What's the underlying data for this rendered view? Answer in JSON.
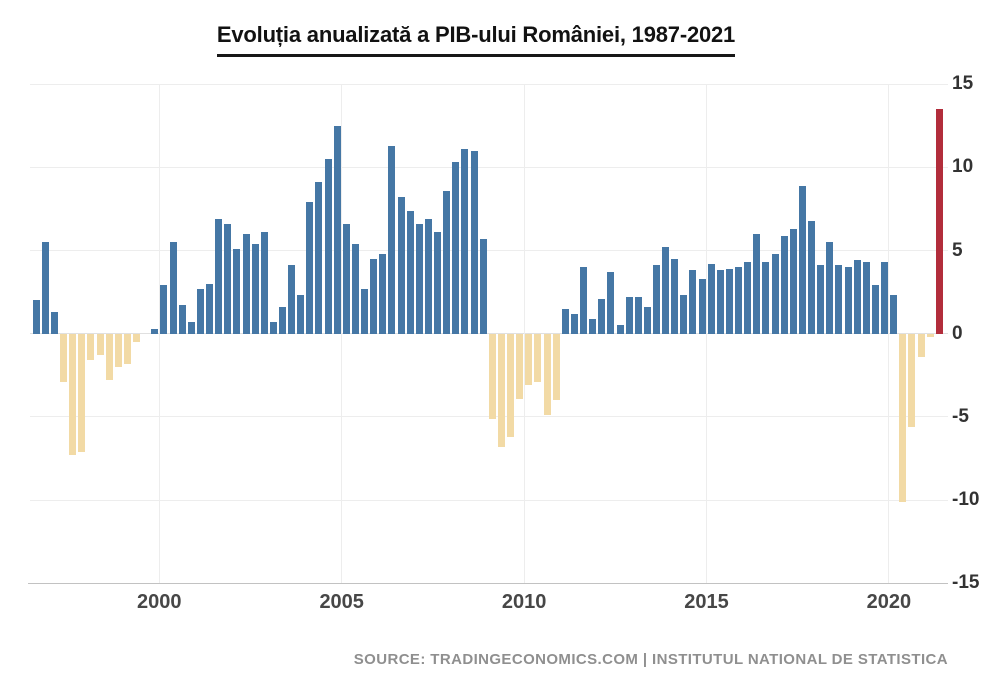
{
  "header": {
    "title": "Evoluția anualizată a PIB-ului României, 1987-2021"
  },
  "footer": {
    "source": "SOURCE: TRADINGECONOMICS.COM | INSTITUTUL NATIONAL DE STATISTICA"
  },
  "chart_data": {
    "type": "bar",
    "title": "Evoluția anualizată a PIB-ului României, 1987-2021",
    "source": "SOURCE: TRADINGECONOMICS.COM | INSTITUTUL NATIONAL DE STATISTICA",
    "frequency": "quarterly",
    "unit": "percent",
    "ylabel": "",
    "xlabel": "",
    "ylim": [
      -15,
      15
    ],
    "y_axis": {
      "side": "right",
      "ticks": [
        15,
        10,
        5,
        0,
        -5,
        -10,
        -15
      ]
    },
    "x_axis": {
      "ticks": [
        "2000",
        "2005",
        "2010",
        "2015",
        "2020"
      ]
    },
    "legend": "none",
    "grid": "on",
    "colors": {
      "positive": "#4577a5",
      "negative": "#f2daa5",
      "highlight": "#b22d3b",
      "gridline": "#ededed",
      "axis_line": "#c2c2c2"
    },
    "bars": [
      {
        "q": "1996-Q3",
        "v": 2.0
      },
      {
        "q": "1996-Q4",
        "v": 5.5
      },
      {
        "q": "1997-Q1",
        "v": 1.3
      },
      {
        "q": "1997-Q2",
        "v": -2.9
      },
      {
        "q": "1997-Q3",
        "v": -7.3
      },
      {
        "q": "1997-Q4",
        "v": -7.1
      },
      {
        "q": "1998-Q1",
        "v": -1.6
      },
      {
        "q": "1998-Q2",
        "v": -1.3
      },
      {
        "q": "1998-Q3",
        "v": -2.8
      },
      {
        "q": "1998-Q4",
        "v": -2.0
      },
      {
        "q": "1999-Q1",
        "v": -1.8
      },
      {
        "q": "1999-Q2",
        "v": -0.5
      },
      {
        "q": "1999-Q3",
        "v": 0.0
      },
      {
        "q": "1999-Q4",
        "v": 0.3
      },
      {
        "q": "2000-Q1",
        "v": 2.9
      },
      {
        "q": "2000-Q2",
        "v": 5.5
      },
      {
        "q": "2000-Q3",
        "v": 1.7
      },
      {
        "q": "2000-Q4",
        "v": 0.7
      },
      {
        "q": "2001-Q1",
        "v": 2.7
      },
      {
        "q": "2001-Q2",
        "v": 3.0
      },
      {
        "q": "2001-Q3",
        "v": 6.9
      },
      {
        "q": "2001-Q4",
        "v": 6.6
      },
      {
        "q": "2002-Q1",
        "v": 5.1
      },
      {
        "q": "2002-Q2",
        "v": 6.0
      },
      {
        "q": "2002-Q3",
        "v": 5.4
      },
      {
        "q": "2002-Q4",
        "v": 6.1
      },
      {
        "q": "2003-Q1",
        "v": 0.7
      },
      {
        "q": "2003-Q2",
        "v": 1.6
      },
      {
        "q": "2003-Q3",
        "v": 4.1
      },
      {
        "q": "2003-Q4",
        "v": 2.3
      },
      {
        "q": "2004-Q1",
        "v": 7.9
      },
      {
        "q": "2004-Q2",
        "v": 9.1
      },
      {
        "q": "2004-Q3",
        "v": 10.5
      },
      {
        "q": "2004-Q4",
        "v": 12.5
      },
      {
        "q": "2005-Q1",
        "v": 6.6
      },
      {
        "q": "2005-Q2",
        "v": 5.4
      },
      {
        "q": "2005-Q3",
        "v": 2.7
      },
      {
        "q": "2005-Q4",
        "v": 4.5
      },
      {
        "q": "2006-Q1",
        "v": 4.8
      },
      {
        "q": "2006-Q2",
        "v": 11.3
      },
      {
        "q": "2006-Q3",
        "v": 8.2
      },
      {
        "q": "2006-Q4",
        "v": 7.4
      },
      {
        "q": "2007-Q1",
        "v": 6.6
      },
      {
        "q": "2007-Q2",
        "v": 6.9
      },
      {
        "q": "2007-Q3",
        "v": 6.1
      },
      {
        "q": "2007-Q4",
        "v": 8.6
      },
      {
        "q": "2008-Q1",
        "v": 10.3
      },
      {
        "q": "2008-Q2",
        "v": 11.1
      },
      {
        "q": "2008-Q3",
        "v": 11.0
      },
      {
        "q": "2008-Q4",
        "v": 5.7
      },
      {
        "q": "2009-Q1",
        "v": -5.1
      },
      {
        "q": "2009-Q2",
        "v": -6.8
      },
      {
        "q": "2009-Q3",
        "v": -6.2
      },
      {
        "q": "2009-Q4",
        "v": -3.9
      },
      {
        "q": "2010-Q1",
        "v": -3.1
      },
      {
        "q": "2010-Q2",
        "v": -2.9
      },
      {
        "q": "2010-Q3",
        "v": -4.9
      },
      {
        "q": "2010-Q4",
        "v": -4.0
      },
      {
        "q": "2011-Q1",
        "v": 1.5
      },
      {
        "q": "2011-Q2",
        "v": 1.2
      },
      {
        "q": "2011-Q3",
        "v": 4.0
      },
      {
        "q": "2011-Q4",
        "v": 0.9
      },
      {
        "q": "2012-Q1",
        "v": 2.1
      },
      {
        "q": "2012-Q2",
        "v": 3.7
      },
      {
        "q": "2012-Q3",
        "v": 0.5
      },
      {
        "q": "2012-Q4",
        "v": 2.2
      },
      {
        "q": "2013-Q1",
        "v": 2.2
      },
      {
        "q": "2013-Q2",
        "v": 1.6
      },
      {
        "q": "2013-Q3",
        "v": 4.1
      },
      {
        "q": "2013-Q4",
        "v": 5.2
      },
      {
        "q": "2014-Q1",
        "v": 4.5
      },
      {
        "q": "2014-Q2",
        "v": 2.3
      },
      {
        "q": "2014-Q3",
        "v": 3.8
      },
      {
        "q": "2014-Q4",
        "v": 3.3
      },
      {
        "q": "2015-Q1",
        "v": 4.2
      },
      {
        "q": "2015-Q2",
        "v": 3.8
      },
      {
        "q": "2015-Q3",
        "v": 3.9
      },
      {
        "q": "2015-Q4",
        "v": 4.0
      },
      {
        "q": "2016-Q1",
        "v": 4.3
      },
      {
        "q": "2016-Q2",
        "v": 6.0
      },
      {
        "q": "2016-Q3",
        "v": 4.3
      },
      {
        "q": "2016-Q4",
        "v": 4.8
      },
      {
        "q": "2017-Q1",
        "v": 5.9
      },
      {
        "q": "2017-Q2",
        "v": 6.3
      },
      {
        "q": "2017-Q3",
        "v": 8.9
      },
      {
        "q": "2017-Q4",
        "v": 6.8
      },
      {
        "q": "2018-Q1",
        "v": 4.1
      },
      {
        "q": "2018-Q2",
        "v": 5.5
      },
      {
        "q": "2018-Q3",
        "v": 4.1
      },
      {
        "q": "2018-Q4",
        "v": 4.0
      },
      {
        "q": "2019-Q1",
        "v": 4.4
      },
      {
        "q": "2019-Q2",
        "v": 4.3
      },
      {
        "q": "2019-Q3",
        "v": 2.9
      },
      {
        "q": "2019-Q4",
        "v": 4.3
      },
      {
        "q": "2020-Q1",
        "v": 2.3
      },
      {
        "q": "2020-Q2",
        "v": -10.1
      },
      {
        "q": "2020-Q3",
        "v": -5.6
      },
      {
        "q": "2020-Q4",
        "v": -1.4
      },
      {
        "q": "2021-Q1",
        "v": -0.2
      },
      {
        "q": "2021-Q2",
        "v": 13.5,
        "highlight": true
      }
    ]
  }
}
